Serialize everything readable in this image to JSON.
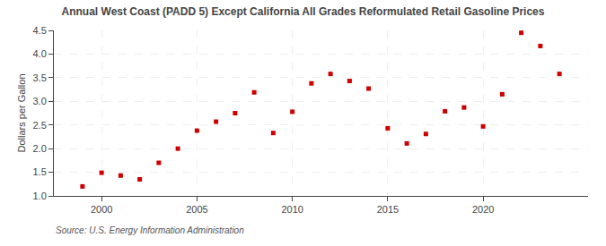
{
  "chart_data": {
    "type": "scatter",
    "title": "Annual West Coast (PADD 5) Except California All Grades Reformulated Retail Gasoline Prices",
    "ylabel": "Dollars per Gallon",
    "annotations": [
      "Source: U.S. Energy Information Administration"
    ],
    "x": [
      1999,
      2000,
      2001,
      2002,
      2003,
      2004,
      2005,
      2006,
      2007,
      2008,
      2009,
      2010,
      2011,
      2012,
      2013,
      2014,
      2015,
      2016,
      2017,
      2018,
      2019,
      2020,
      2021,
      2022,
      2023,
      2024
    ],
    "values": [
      1.2,
      1.49,
      1.43,
      1.35,
      1.7,
      2.0,
      2.38,
      2.57,
      2.75,
      3.19,
      2.33,
      2.78,
      3.38,
      3.58,
      3.43,
      3.27,
      2.43,
      2.11,
      2.31,
      2.79,
      2.87,
      2.47,
      3.15,
      4.45,
      4.17,
      3.58
    ],
    "color": "#cc0000",
    "marker": "square",
    "xlim": [
      1997.5,
      2025.5
    ],
    "xticks": [
      2000,
      2005,
      2010,
      2015,
      2020
    ],
    "ylim": [
      1.0,
      4.5
    ],
    "yticks": [
      {
        "value": 1.0,
        "label": "1.0"
      },
      {
        "value": 1.5,
        "label": "1.5"
      },
      {
        "value": 2.0,
        "label": "2.0"
      },
      {
        "value": 2.5,
        "label": "2.5"
      },
      {
        "value": 3.0,
        "label": "3.0"
      },
      {
        "value": 3.5,
        "label": "3.5"
      },
      {
        "value": 4.0,
        "label": "4.0"
      },
      {
        "value": 4.5,
        "label": "4.5"
      }
    ],
    "grid": true
  }
}
